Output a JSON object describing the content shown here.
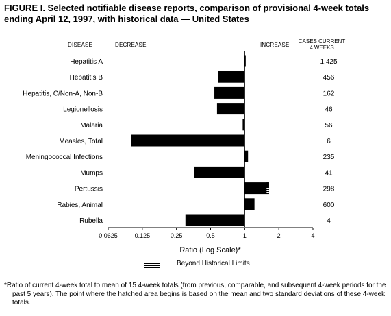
{
  "figure": {
    "title": "FIGURE I. Selected notifiable disease reports, comparison of provisional 4-week totals ending April 12, 1997, with historical data — United States",
    "col_disease": "DISEASE",
    "col_decrease": "DECREASE",
    "col_increase": "INCREASE",
    "col_cases_line1": "CASES CURRENT",
    "col_cases_line2": "4 WEEKS",
    "legend_label": "Beyond Historical Limits",
    "footnote": "*Ratio of current 4-week total to mean of 15 4-week totals (from previous, comparable, and subsequent 4-week periods for the past 5 years). The point where the hatched area begins is based on the mean and two standard deviations of these 4-week totals."
  },
  "chart_data": {
    "type": "bar",
    "orientation": "horizontal",
    "xlabel": "Ratio (Log Scale)*",
    "x_scale": "log2",
    "xlim": [
      0.0625,
      4
    ],
    "xticks": [
      "0.0625",
      "0.125",
      "0.25",
      "0.5",
      "1",
      "2",
      "4"
    ],
    "baseline": 1,
    "categories": [
      "Hepatitis A",
      "Hepatitis B",
      "Hepatitis, C/Non-A, Non-B",
      "Legionellosis",
      "Malaria",
      "Measles, Total",
      "Meningococcal Infections",
      "Mumps",
      "Pertussis",
      "Rabies, Animal",
      "Rubella"
    ],
    "values": [
      1.02,
      0.58,
      0.54,
      0.57,
      0.96,
      0.1,
      1.07,
      0.36,
      1.64,
      1.22,
      0.3
    ],
    "cases_current_4_weeks": [
      "1,425",
      "456",
      "162",
      "46",
      "56",
      "6",
      "235",
      "41",
      "298",
      "600",
      "4"
    ],
    "beyond_historical_limits": [
      {
        "category": "Pertussis",
        "limit": 1.56
      }
    ],
    "bar_color": "#000000",
    "grid": false,
    "legend_position": "bottom-center"
  }
}
